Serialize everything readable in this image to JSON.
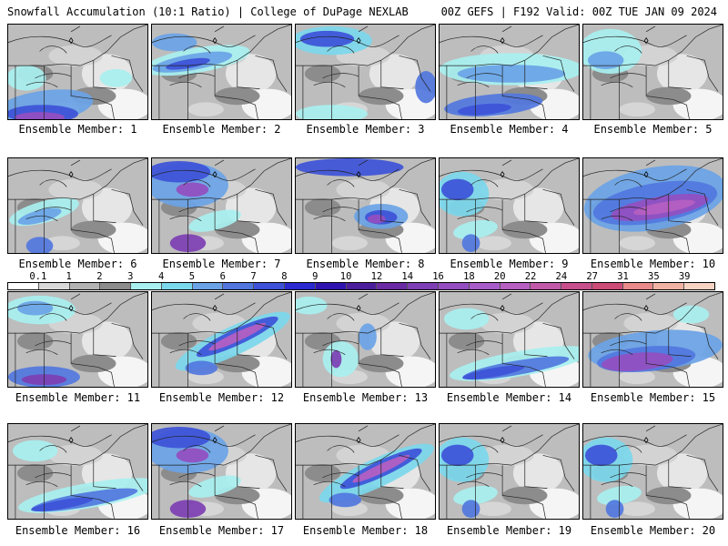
{
  "header": {
    "title_left": "Snowfall Accumulation (10:1 Ratio) | College of DuPage NEXLAB",
    "title_right": "00Z GEFS | F192 Valid: 00Z TUE JAN 09 2024"
  },
  "members": [
    {
      "label": "Ensemble Member: 1",
      "snow_mode": "southwest-heavy"
    },
    {
      "label": "Ensemble Member: 2",
      "snow_mode": "northern-band"
    },
    {
      "label": "Ensemble Member: 3",
      "snow_mode": "northwest-moderate"
    },
    {
      "label": "Ensemble Member: 4",
      "snow_mode": "northern-moderate"
    },
    {
      "label": "Ensemble Member: 5",
      "snow_mode": "northwest-light"
    },
    {
      "label": "Ensemble Member: 6",
      "snow_mode": "southwest-light"
    },
    {
      "label": "Ensemble Member: 7",
      "snow_mode": "northwest-heavy"
    },
    {
      "label": "Ensemble Member: 8",
      "snow_mode": "coastal-moderate"
    },
    {
      "label": "Ensemble Member: 9",
      "snow_mode": "west-moderate"
    },
    {
      "label": "Ensemble Member: 10",
      "snow_mode": "widespread-heavy"
    },
    {
      "label": "Ensemble Member: 11",
      "snow_mode": "southwest-moderate"
    },
    {
      "label": "Ensemble Member: 12",
      "snow_mode": "central-band-heavy"
    },
    {
      "label": "Ensemble Member: 13",
      "snow_mode": "central-light"
    },
    {
      "label": "Ensemble Member: 14",
      "snow_mode": "southern-band"
    },
    {
      "label": "Ensemble Member: 15",
      "snow_mode": "southern-heavy"
    },
    {
      "label": "Ensemble Member: 16",
      "snow_mode": "southern-band"
    },
    {
      "label": "Ensemble Member: 17",
      "snow_mode": "northwest-heavy"
    },
    {
      "label": "Ensemble Member: 18",
      "snow_mode": "central-band-heavy"
    },
    {
      "label": "Ensemble Member: 19",
      "snow_mode": "west-moderate"
    },
    {
      "label": "Ensemble Member: 20",
      "snow_mode": "west-moderate"
    }
  ],
  "colorbar": {
    "labels": [
      "0.1",
      "1",
      "2",
      "3",
      "4",
      "5",
      "6",
      "7",
      "8",
      "9",
      "10",
      "12",
      "14",
      "16",
      "18",
      "20",
      "22",
      "24",
      "27",
      "31",
      "35",
      "39"
    ],
    "colors": [
      "#ffffff",
      "#d9d9d9",
      "#b3b3b3",
      "#8c8c8c",
      "#a8f0f0",
      "#7bd8ec",
      "#6aa3e6",
      "#5177de",
      "#3d52d8",
      "#2a2ad0",
      "#3014b0",
      "#4d1e9c",
      "#6a2aa3",
      "#7d3fb3",
      "#944ec0",
      "#a85cc8",
      "#b660c2",
      "#c05aa8",
      "#c7508c",
      "#cc4c78",
      "#e88a8a",
      "#f1b3a3",
      "#f7d3c3"
    ]
  }
}
